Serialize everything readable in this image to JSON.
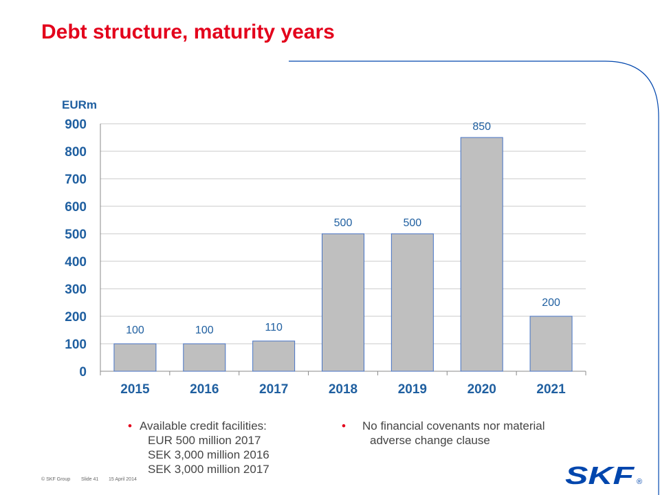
{
  "slide": {
    "title": "Debt structure, maturity years"
  },
  "chart_data": {
    "type": "bar",
    "ylabel": "EURm",
    "categories": [
      "2015",
      "2016",
      "2017",
      "2018",
      "2019",
      "2020",
      "2021"
    ],
    "values": [
      100,
      100,
      110,
      500,
      500,
      850,
      200
    ],
    "data_labels": [
      "100",
      "100",
      "110",
      "500",
      "500",
      "850",
      "200"
    ],
    "ylim": [
      0,
      900
    ],
    "yticks": [
      0,
      100,
      200,
      300,
      400,
      500,
      600,
      700,
      800,
      900
    ],
    "grid": true,
    "bar_color": "#bfbfbf",
    "bar_edge_color": "#4472c4",
    "axis_label_color": "#1f5fa0"
  },
  "bullets_left": {
    "line1": "Available credit facilities:",
    "line2": "EUR 500 million 2017",
    "line3": "SEK 3,000 million 2016",
    "line4": "SEK 3,000 million 2017"
  },
  "bullets_right": {
    "line1": "No financial covenants nor material",
    "line2": "adverse change clause"
  },
  "footer": {
    "copyright": "© SKF Group",
    "slide": "Slide 41",
    "date": "15 April 2014"
  },
  "logo": {
    "text": "SKF",
    "color": "#0046ad",
    "registered": "®"
  },
  "colors": {
    "title": "#e3001b",
    "accent_line": "#0046ad"
  }
}
